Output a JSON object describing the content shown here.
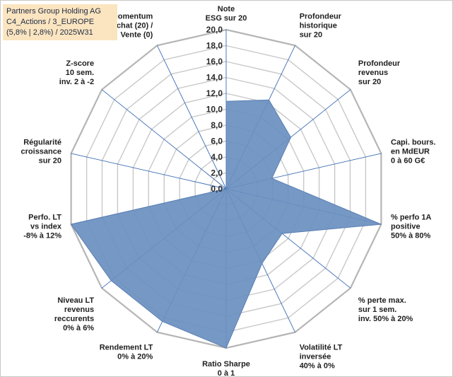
{
  "header": {
    "line1": "Partners Group Holding AG",
    "line2": "C4_Actions / 3_EUROPE",
    "line3": "(5,8% | 2,8%) / 2025W31"
  },
  "chart_data": {
    "type": "radar",
    "rmin": 0,
    "rmax": 20,
    "tick_step": 2,
    "tick_labels": [
      "0,0",
      "2,0",
      "4,0",
      "6,0",
      "8,0",
      "10,0",
      "12,0",
      "14,0",
      "16,0",
      "18,0",
      "20,0"
    ],
    "fill_color": "#6a8fc0",
    "grid_color": "#c8c8c8",
    "spoke_color": "#3b6db5",
    "axes": [
      {
        "label": [
          "Note",
          "ESG sur 20"
        ],
        "value": 11.0
      },
      {
        "label": [
          "Profondeur",
          "historique",
          "sur 20"
        ],
        "value": 12.4
      },
      {
        "label": [
          "Profondeur",
          "revenus",
          "sur 20"
        ],
        "value": 10.4
      },
      {
        "label": [
          "Capi. bours.",
          "en MdEUR",
          "0 à 60 G€"
        ],
        "value": 5.9
      },
      {
        "label": [
          "% perfo 1A",
          "positive",
          "50% à 80%"
        ],
        "value": 20.0
      },
      {
        "label": [
          "% perte max.",
          "sur 1 sem.",
          "inv. 50% à 20%"
        ],
        "value": 9.0
      },
      {
        "label": [
          "Volatilité LT",
          "inversée",
          "40% à 0%"
        ],
        "value": 10.4
      },
      {
        "label": [
          "Ratio Sharpe",
          "0 à 1"
        ],
        "value": 20.0
      },
      {
        "label": [
          "Rendement LT",
          "0% à 20%"
        ],
        "value": 18.5
      },
      {
        "label": [
          "Niveau LT",
          "revenus",
          "reccurents",
          "0% à 6%"
        ],
        "value": 18.5
      },
      {
        "label": [
          "Perfo. LT",
          "vs index",
          "-8% à 12%"
        ],
        "value": 20.0
      },
      {
        "label": [
          "Régularité",
          "croissance",
          "sur 20"
        ],
        "value": 0.0
      },
      {
        "label": [
          "Z-score",
          "10 sem.",
          "inv. 2 à -2"
        ],
        "value": 3.2
      },
      {
        "label": [
          "Momentum",
          "Achat (20) /",
          "Vente (0)"
        ],
        "value": 0.0
      }
    ]
  }
}
